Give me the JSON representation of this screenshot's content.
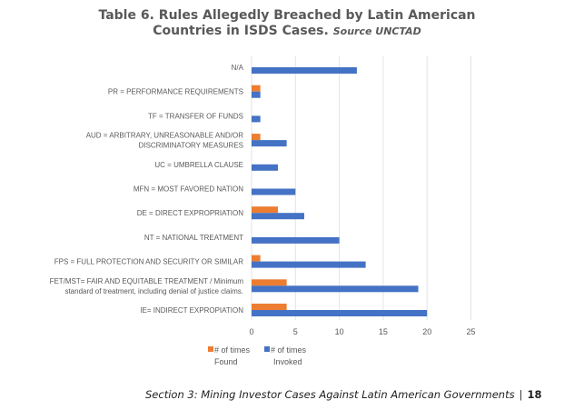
{
  "title": {
    "main_line1": "Table 6. Rules Allegedly Breached by Latin American",
    "main_line2": "Countries in ISDS Cases.",
    "source": "Source UNCTAD"
  },
  "footer": {
    "section": "Section 3: Mining Investor Cases Against Latin American Governments",
    "separator": "|",
    "page": "18"
  },
  "chart_data": {
    "type": "bar",
    "orientation": "horizontal",
    "title": "Table 6. Rules Allegedly Breached by Latin American Countries in ISDS Cases. Source UNCTAD",
    "xlabel": "",
    "ylabel": "",
    "xlim": [
      0,
      25
    ],
    "xticks": [
      0,
      5,
      10,
      15,
      20,
      25
    ],
    "grid": "vertical",
    "legend": "bottom",
    "categories": [
      [
        "N/A"
      ],
      [
        "PR = PERFORMANCE  REQUIREMENTS"
      ],
      [
        "TF = TRANSFER  OF FUNDS"
      ],
      [
        "AUD = ARBITRARY,  UNREASONABLE  AND/OR",
        "DISCRIMINATORY  MEASURES"
      ],
      [
        "UC = UMBRELLA  CLAUSE"
      ],
      [
        "MFN = MOST FAVORED NATION"
      ],
      [
        "DE = DIRECT  EXPROPRIATION"
      ],
      [
        "NT = NATIONAL  TREATMENT"
      ],
      [
        "FPS = FULL PROTECTION  AND SECURITY  OR SIMILAR"
      ],
      [
        "FET/MST= FAIR AND EQUITABLE  TREATMENT  / Minimum",
        "standard of treatment,  including denial of justice claims."
      ],
      [
        "IE= INDIRECT  EXPROPIATION"
      ]
    ],
    "series": [
      {
        "name": "# of times Found",
        "legend_lines": [
          "# of times",
          "Found"
        ],
        "color": "#ED7D31",
        "values": [
          0,
          1,
          0,
          1,
          0,
          0,
          3,
          0,
          1,
          4,
          4
        ]
      },
      {
        "name": "# of times Invoked",
        "legend_lines": [
          "# of times",
          "Invoked"
        ],
        "color": "#4472C4",
        "values": [
          12,
          1,
          1,
          4,
          3,
          5,
          6,
          10,
          13,
          19,
          20
        ]
      }
    ]
  }
}
